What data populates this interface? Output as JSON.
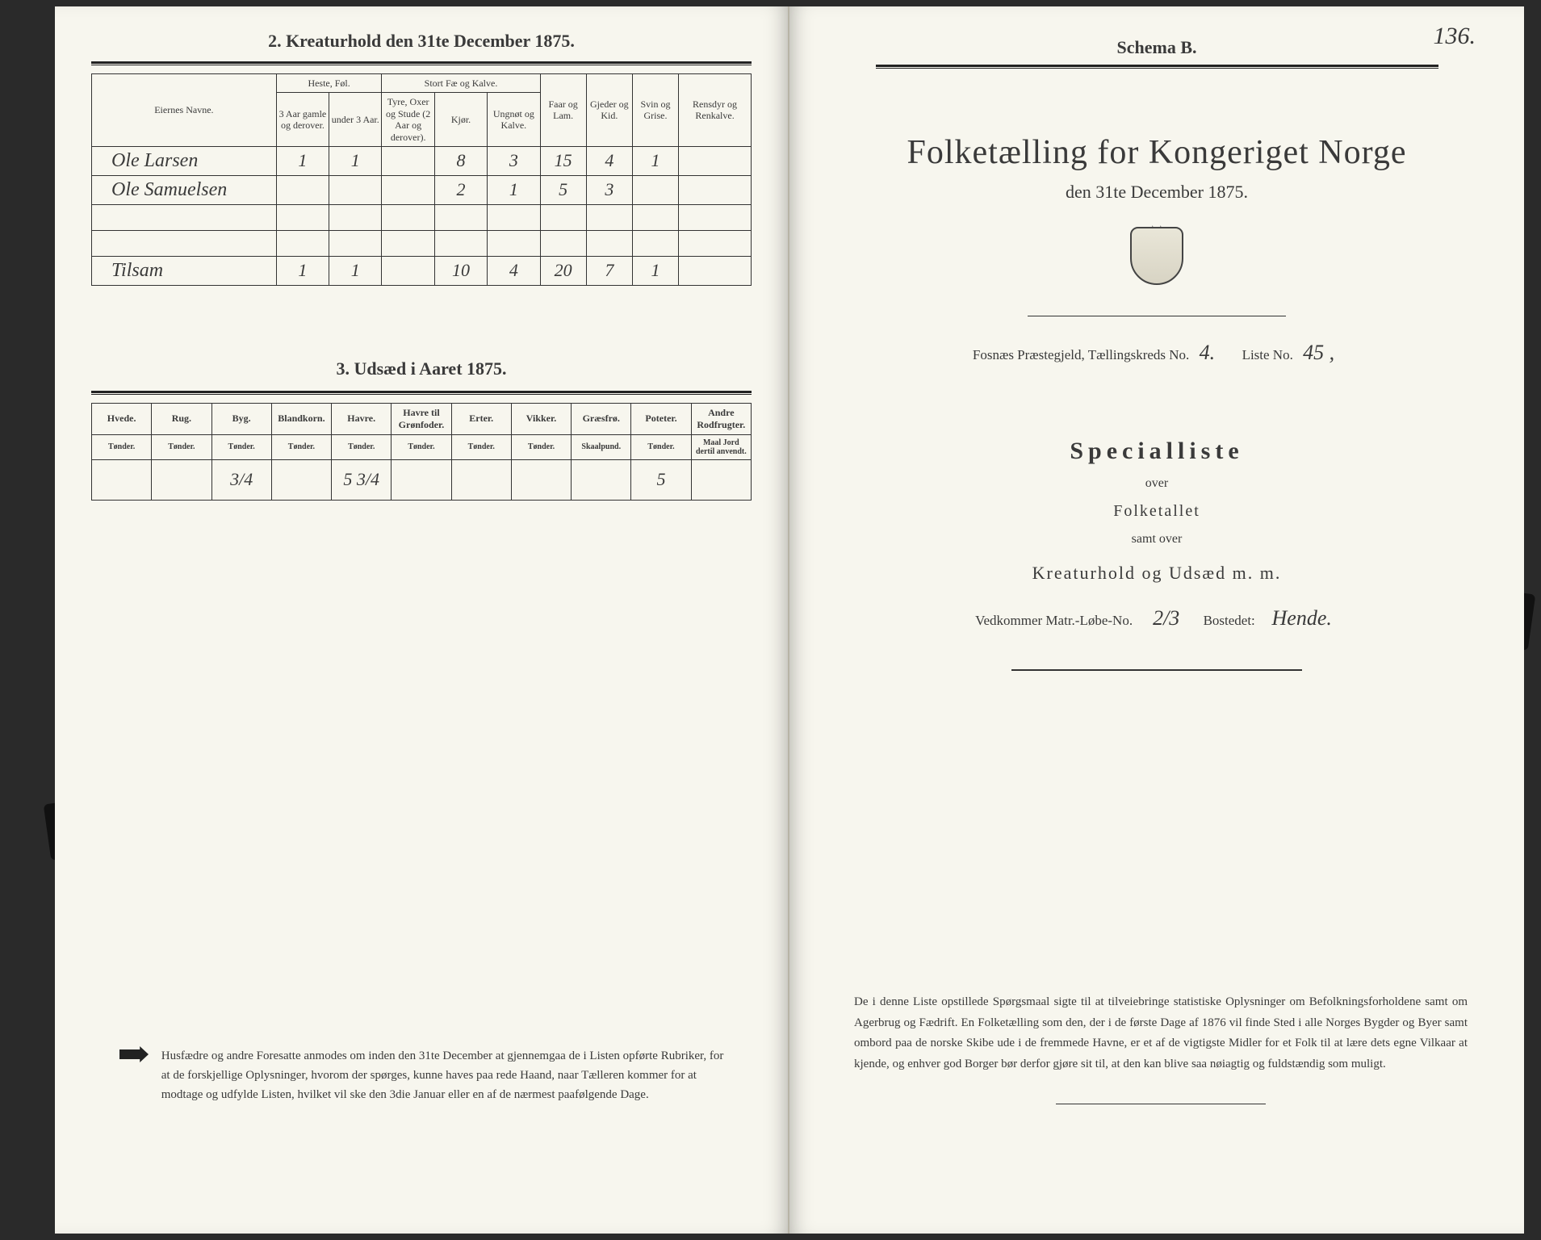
{
  "left": {
    "heading2": "2.  Kreaturhold den 31te December 1875.",
    "livestock": {
      "col_eier": "Eiernes Navne.",
      "group_heste": "Heste, Føl.",
      "heste_a": "3 Aar gamle og derover.",
      "heste_b": "under 3 Aar.",
      "group_stort": "Stort Fæ og Kalve.",
      "stort_a": "Tyre, Oxer og Stude (2 Aar og derover).",
      "stort_b": "Kjør.",
      "stort_c": "Ungnøt og Kalve.",
      "col_faar": "Faar og Lam.",
      "col_gjeder": "Gjeder og Kid.",
      "col_svin": "Svin og Grise.",
      "col_rensdyr": "Rensdyr og Renkalve.",
      "rows": [
        {
          "name": "Ole Larsen",
          "c1": "1",
          "c2": "1",
          "c3": "",
          "c4": "8",
          "c5": "3",
          "c6": "15",
          "c7": "4",
          "c8": "1",
          "c9": ""
        },
        {
          "name": "Ole Samuelsen",
          "c1": "",
          "c2": "",
          "c3": "",
          "c4": "2",
          "c5": "1",
          "c6": "5",
          "c7": "3",
          "c8": "",
          "c9": ""
        }
      ],
      "tilsam_label": "Tilsam",
      "tilsam": {
        "c1": "1",
        "c2": "1",
        "c3": "",
        "c4": "10",
        "c5": "4",
        "c6": "20",
        "c7": "7",
        "c8": "1",
        "c9": ""
      }
    },
    "heading3": "3.  Udsæd i Aaret 1875.",
    "sowing": {
      "cols": [
        {
          "h": "Hvede.",
          "s": "Tønder."
        },
        {
          "h": "Rug.",
          "s": "Tønder."
        },
        {
          "h": "Byg.",
          "s": "Tønder."
        },
        {
          "h": "Blandkorn.",
          "s": "Tønder."
        },
        {
          "h": "Havre.",
          "s": "Tønder."
        },
        {
          "h": "Havre til Grønfoder.",
          "s": "Tønder."
        },
        {
          "h": "Erter.",
          "s": "Tønder."
        },
        {
          "h": "Vikker.",
          "s": "Tønder."
        },
        {
          "h": "Græsfrø.",
          "s": "Skaalpund."
        },
        {
          "h": "Poteter.",
          "s": "Tønder."
        },
        {
          "h": "Andre Rodfrugter.",
          "s": "Maal Jord dertil anvendt."
        }
      ],
      "vals": [
        "",
        "",
        "3/4",
        "",
        "5 3/4",
        "",
        "",
        "",
        "",
        "5",
        ""
      ]
    },
    "footnote": "Husfædre og andre Foresatte anmodes om inden den 31te December at gjennemgaa de i Listen opførte Rubriker, for at de forskjellige Oplysninger, hvorom der spørges, kunne haves paa rede Haand, naar Tælleren kommer for at modtage og udfylde Listen, hvilket vil ske den 3die Januar eller en af de nærmest paafølgende Dage."
  },
  "right": {
    "page_number": "136.",
    "schema": "Schema B.",
    "title": "Folketælling for Kongeriget Norge",
    "subtitle": "den 31te December 1875.",
    "parish_prefix": "Fosnæs  Præstegjeld,  Tællingskreds No.",
    "kreds_no": "4.",
    "liste_prefix": "Liste No.",
    "liste_no": "45 ,",
    "specialliste": "Specialliste",
    "over": "over",
    "folketallet": "Folketallet",
    "samtover": "samt over",
    "kreatur": "Kreaturhold  og  Udsæd  m. m.",
    "vedkommer_prefix": "Vedkommer Matr.-Løbe-No.",
    "matr_no": "2/3",
    "bostedet_prefix": "Bostedet:",
    "bostedet": "Hende.",
    "footnote": "De i denne Liste opstillede Spørgsmaal sigte til at tilveiebringe statistiske Oplysninger om Befolkningsforholdene samt om Agerbrug og Fædrift.  En Folketælling som den, der i de første Dage af 1876 vil finde Sted i alle Norges Bygder og Byer samt ombord paa de norske Skibe ude i de fremmede Havne, er et af de vigtigste Midler for et Folk til at lære dets egne Vilkaar at kjende, og enhver god Borger bør derfor gjøre sit til, at den kan blive saa nøiagtig og fuldstændig som muligt."
  }
}
